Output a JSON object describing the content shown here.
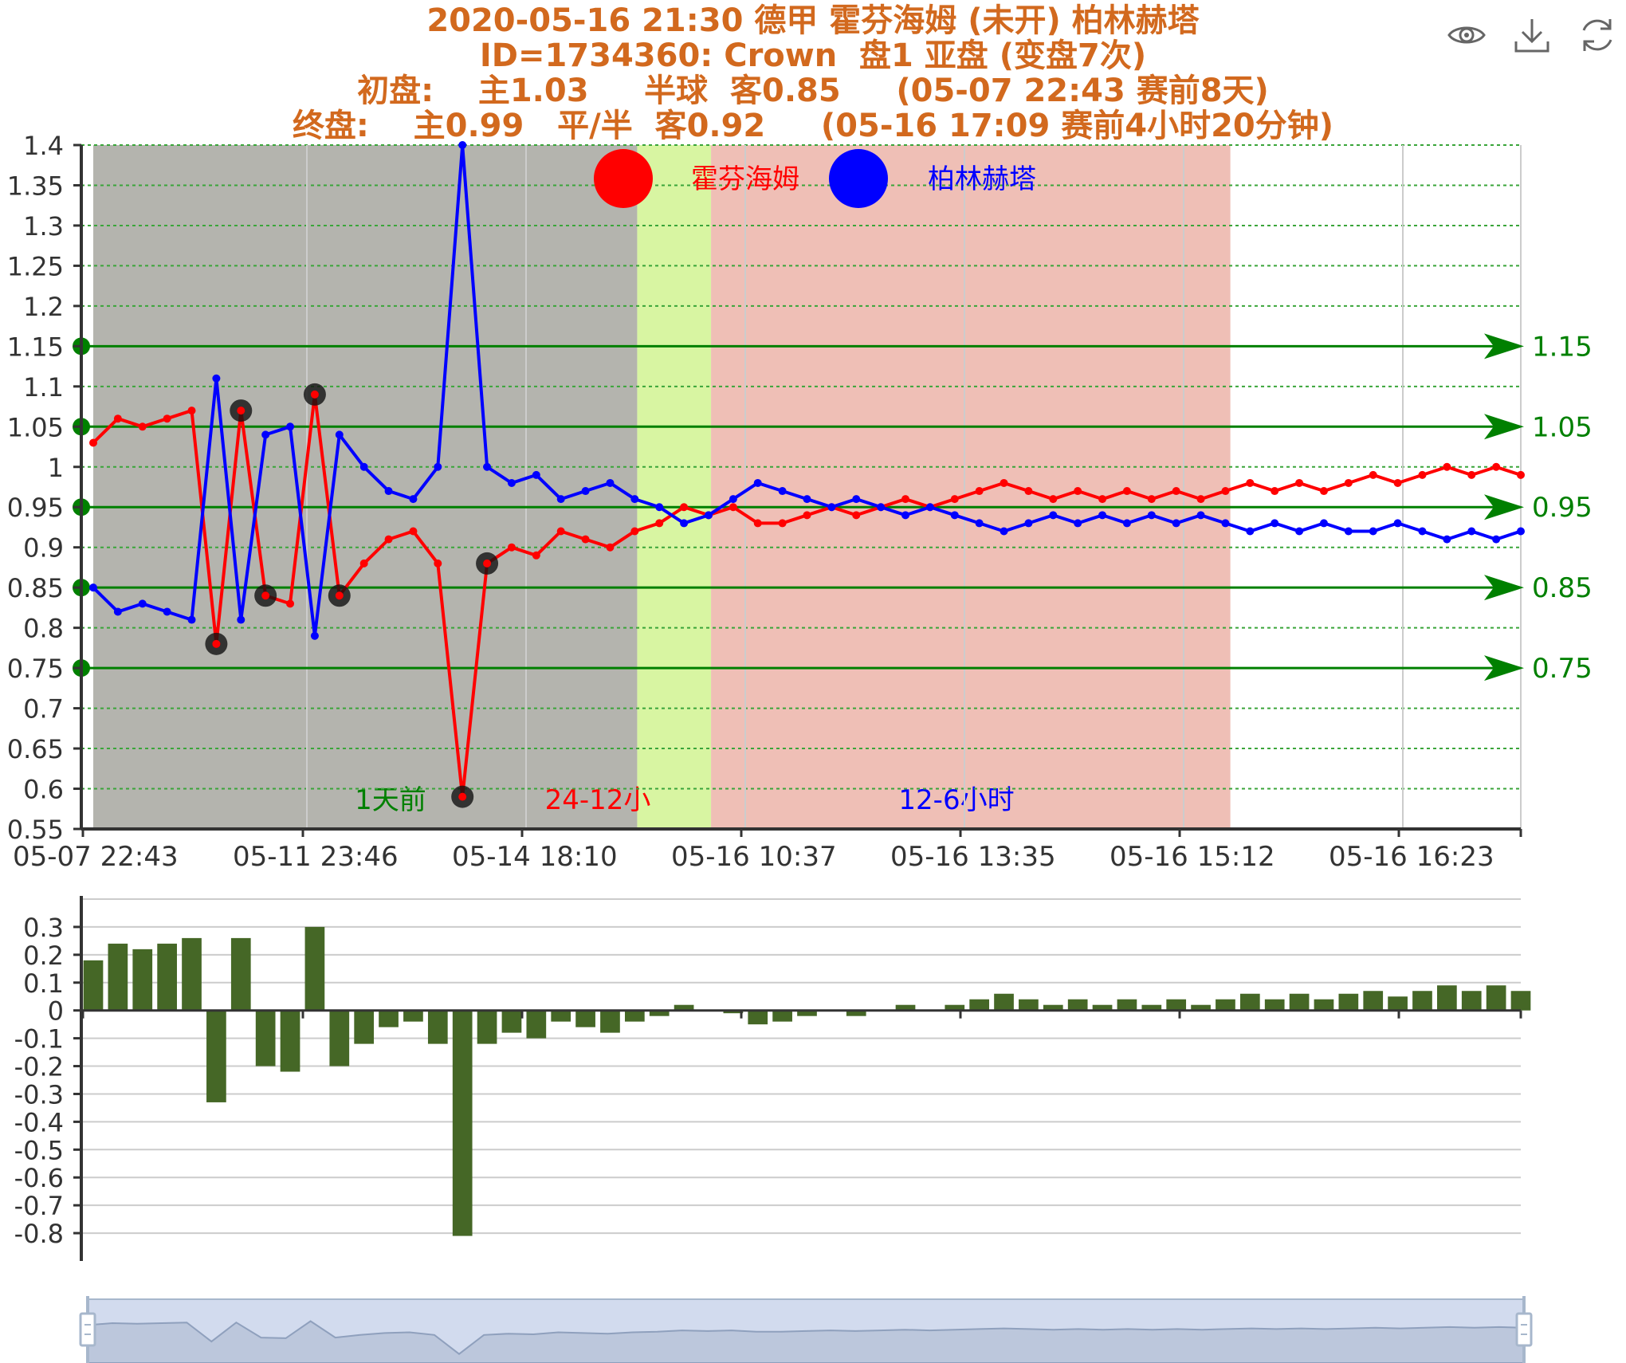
{
  "title": {
    "line1": "2020-05-16 21:30 德甲 霍芬海姆 (未开) 柏林赫塔",
    "line2": "ID=1734360: Crown  盘1 亚盘 (变盘7次)",
    "line3": "初盘:    主1.03     半球  客0.85     (05-07 22:43 赛前8天)",
    "line4": "终盘:    主0.99   平/半  客0.92     (05-16 17:09 赛前4小时20分钟)"
  },
  "toolbox": {
    "view": "eye-icon",
    "download": "download-icon",
    "refresh": "refresh-icon"
  },
  "chart_data": [
    {
      "type": "line",
      "x_tick_labels": [
        "05-07 22:43",
        "05-11 23:46",
        "05-14 18:10",
        "05-16 10:37",
        "05-16 13:35",
        "05-16 15:12",
        "05-16 16:23"
      ],
      "ylim": [
        0.55,
        1.4
      ],
      "y_ticks": [
        0.55,
        0.6,
        0.65,
        0.7,
        0.75,
        0.8,
        0.85,
        0.9,
        0.95,
        1,
        1.05,
        1.1,
        1.15,
        1.2,
        1.25,
        1.3,
        1.35,
        1.4
      ],
      "grid": true,
      "legend": [
        {
          "name": "霍芬海姆",
          "color": "#ff0000"
        },
        {
          "name": "柏林赫塔",
          "color": "#0000ff"
        }
      ],
      "series": [
        {
          "name": "霍芬海姆",
          "color": "#ff0000",
          "values": [
            1.03,
            1.06,
            1.05,
            1.06,
            1.07,
            0.78,
            1.07,
            0.84,
            0.83,
            1.09,
            0.84,
            0.88,
            0.91,
            0.92,
            0.88,
            0.59,
            0.88,
            0.9,
            0.89,
            0.92,
            0.91,
            0.9,
            0.92,
            0.93,
            0.95,
            0.94,
            0.95,
            0.93,
            0.93,
            0.94,
            0.95,
            0.94,
            0.95,
            0.96,
            0.95,
            0.96,
            0.97,
            0.98,
            0.97,
            0.96,
            0.97,
            0.96,
            0.97,
            0.96,
            0.97,
            0.96,
            0.97,
            0.98,
            0.97,
            0.98,
            0.97,
            0.98,
            0.99,
            0.98,
            0.99,
            1.0,
            0.99,
            1.0,
            0.99
          ]
        },
        {
          "name": "柏林赫塔",
          "color": "#0000ff",
          "values": [
            0.85,
            0.82,
            0.83,
            0.82,
            0.81,
            1.11,
            0.81,
            1.04,
            1.05,
            0.79,
            1.04,
            1.0,
            0.97,
            0.96,
            1.0,
            1.4,
            1.0,
            0.98,
            0.99,
            0.96,
            0.97,
            0.98,
            0.96,
            0.95,
            0.93,
            0.94,
            0.96,
            0.98,
            0.97,
            0.96,
            0.95,
            0.96,
            0.95,
            0.94,
            0.95,
            0.94,
            0.93,
            0.92,
            0.93,
            0.94,
            0.93,
            0.94,
            0.93,
            0.94,
            0.93,
            0.94,
            0.93,
            0.92,
            0.93,
            0.92,
            0.93,
            0.92,
            0.92,
            0.93,
            0.92,
            0.91,
            0.92,
            0.91,
            0.92
          ]
        }
      ],
      "highlighted_points": [
        {
          "series": "霍芬海姆",
          "index": 5,
          "value": 0.78
        },
        {
          "series": "霍芬海姆",
          "index": 6,
          "value": 1.07
        },
        {
          "series": "霍芬海姆",
          "index": 7,
          "value": 0.84
        },
        {
          "series": "霍芬海姆",
          "index": 9,
          "value": 1.09
        },
        {
          "series": "霍芬海姆",
          "index": 10,
          "value": 0.84
        },
        {
          "series": "霍芬海姆",
          "index": 15,
          "value": 0.59
        },
        {
          "series": "霍芬海姆",
          "index": 16,
          "value": 0.88
        }
      ],
      "reference_lines": [
        {
          "value": 1.15,
          "label": "1.15"
        },
        {
          "value": 1.05,
          "label": "1.05"
        },
        {
          "value": 0.95,
          "label": "0.95"
        },
        {
          "value": 0.85,
          "label": "0.85"
        },
        {
          "value": 0.75,
          "label": "0.75"
        }
      ],
      "reference_color": "#008000",
      "regions": [
        {
          "label": "1天前",
          "start_index": 0,
          "end_index": 22.1,
          "color": "#b4b4ae",
          "label_color": "#008000"
        },
        {
          "label": "24-12小",
          "start_index": 22.1,
          "end_index": 25.1,
          "color": "#d8f5a2",
          "label_color": "#ff0000"
        },
        {
          "label": "12-6小时",
          "start_index": 25.1,
          "end_index": 46.2,
          "color": "#efbfb6",
          "label_color": "#0000ff"
        }
      ]
    },
    {
      "type": "bar",
      "ylim": [
        -0.9,
        0.4
      ],
      "y_ticks": [
        0.3,
        0.2,
        0.1,
        0,
        -0.1,
        -0.2,
        -0.3,
        -0.4,
        -0.5,
        -0.6,
        -0.7,
        -0.8
      ],
      "y_tick_labels": [
        "0.3",
        "0.2",
        "0.1",
        "0",
        "-0.1",
        "-0.2",
        "-0.3",
        "-0.4",
        "-0.5",
        "-0.6",
        "-0.7",
        "-0.8"
      ],
      "color": "#456726",
      "values": [
        0.18,
        0.24,
        0.22,
        0.24,
        0.26,
        -0.33,
        0.26,
        -0.2,
        -0.22,
        0.3,
        -0.2,
        -0.12,
        -0.06,
        -0.04,
        -0.12,
        -0.81,
        -0.12,
        -0.08,
        -0.1,
        -0.04,
        -0.06,
        -0.08,
        -0.04,
        -0.02,
        0.02,
        0,
        -0.01,
        -0.05,
        -0.04,
        -0.02,
        0,
        -0.02,
        0,
        0.02,
        0,
        0.02,
        0.04,
        0.06,
        0.04,
        0.02,
        0.04,
        0.02,
        0.04,
        0.02,
        0.04,
        0.02,
        0.04,
        0.06,
        0.04,
        0.06,
        0.04,
        0.06,
        0.07,
        0.05,
        0.07,
        0.09,
        0.07,
        0.09,
        0.07
      ]
    }
  ]
}
